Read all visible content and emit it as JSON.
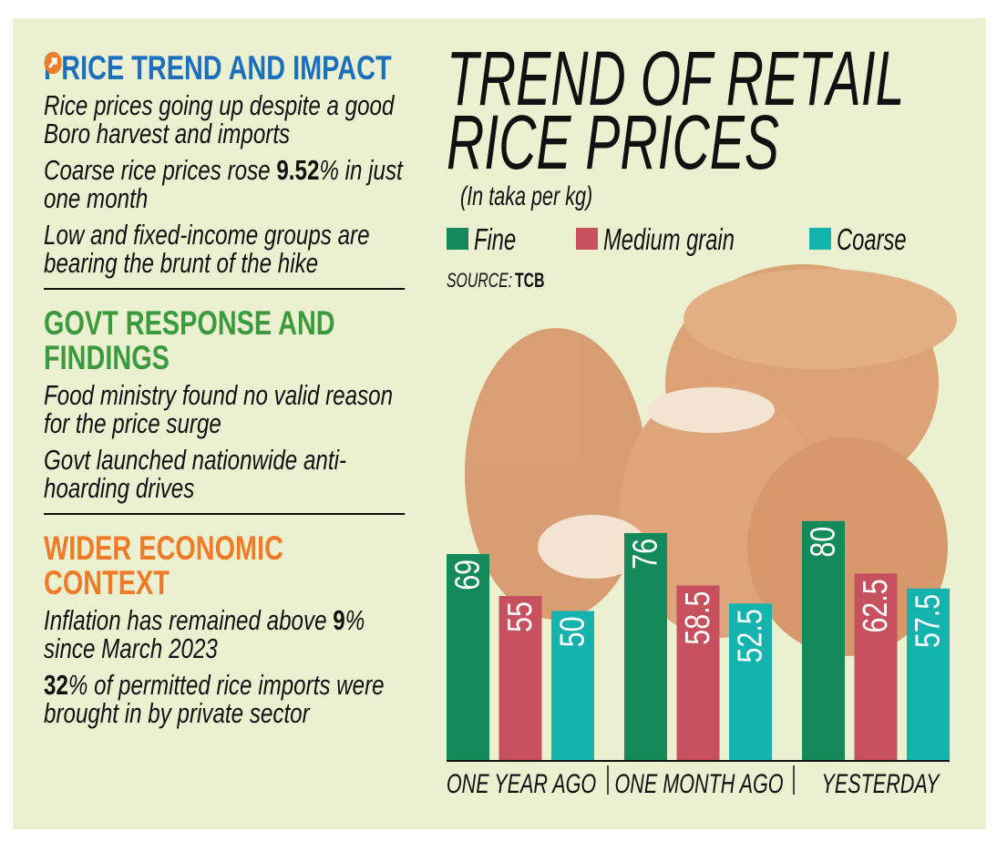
{
  "sections": [
    {
      "heading": "PRICE TREND AND IMPACT",
      "color": "#1b6fbf",
      "bullets": [
        {
          "parts": [
            "Rice prices going up despite a good Boro harvest and imports"
          ]
        },
        {
          "parts": [
            "Coarse rice prices rose ",
            {
              "text": "9.52",
              "bold": true
            },
            "% in just one month"
          ]
        },
        {
          "parts": [
            "Low and fixed-income groups are bearing the brunt of the hike"
          ]
        }
      ]
    },
    {
      "heading": "GOVT RESPONSE AND FINDINGS",
      "color": "#3b9a3d",
      "bullets": [
        {
          "parts": [
            "Food ministry found no valid reason for the price surge"
          ]
        },
        {
          "parts": [
            "Govt launched nationwide anti-hoarding drives"
          ]
        }
      ]
    },
    {
      "heading": "WIDER ECONOMIC CONTEXT",
      "color": "#ef7b28",
      "bullets": [
        {
          "parts": [
            "Inflation has remained above ",
            {
              "text": "9",
              "bold": true
            },
            "% since March 2023"
          ]
        },
        {
          "parts": [
            {
              "text": "32",
              "bold": true
            },
            "% of permitted rice imports were brought in by private sector"
          ]
        }
      ]
    }
  ],
  "chart_data": {
    "type": "bar",
    "title": [
      "TREND OF RETAIL",
      "RICE PRICES"
    ],
    "subtitle": "(In taka per kg)",
    "source_label": "SOURCE:",
    "source": "TCB",
    "categories": [
      "ONE YEAR AGO",
      "ONE MONTH AGO",
      "YESTERDAY"
    ],
    "series": [
      {
        "name": "Fine",
        "color": "#148a5b",
        "values": [
          69,
          76,
          80
        ]
      },
      {
        "name": "Medium grain",
        "color": "#c7505e",
        "values": [
          55,
          58.5,
          62.5
        ]
      },
      {
        "name": "Coarse",
        "color": "#14b3ae",
        "values": [
          50,
          52.5,
          57.5
        ]
      }
    ]
  }
}
